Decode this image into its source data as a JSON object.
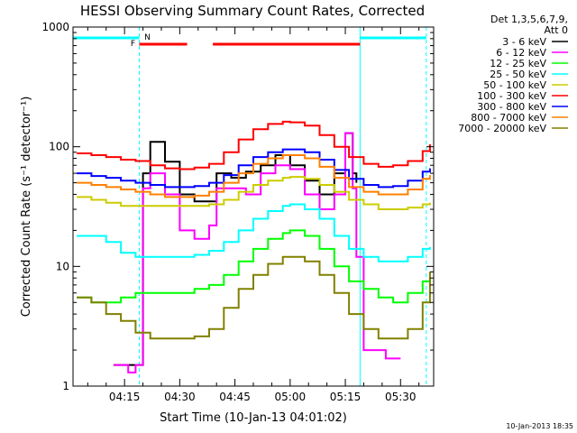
{
  "chart_data": {
    "type": "line",
    "title": "HESSI Observing Summary Count Rates, Corrected",
    "xlabel": "Start Time (10-Jan-13 04:01:02)",
    "ylabel": "Corrected Count Rate (s⁻¹ detector⁻¹)",
    "y_scale": "log",
    "ylim": [
      1,
      1000
    ],
    "y_ticks": [
      "1",
      "10",
      "100",
      "1000"
    ],
    "xlim": [
      "04:01",
      "05:39"
    ],
    "x_ticks": [
      "04:15",
      "04:30",
      "04:45",
      "05:00",
      "05:15",
      "05:30"
    ],
    "legend_title": [
      "Det 1,3,5,6,7,9,",
      "Att 0"
    ],
    "legend_position": "right",
    "timestamp": "10-Jan-2013 18:35",
    "flags": {
      "labels": [
        "F",
        "N"
      ],
      "night": [
        [
          "04:01",
          "04:19"
        ],
        [
          "05:19",
          "05:37"
        ]
      ],
      "saa_flare": [
        [
          "04:19",
          "04:32"
        ],
        [
          "04:39",
          "05:19"
        ]
      ]
    },
    "series": [
      {
        "name": "3 - 6 keV",
        "color": "#000000",
        "x": [
          "04:12",
          "04:16",
          "04:18",
          "04:20",
          "04:22",
          "04:26",
          "04:30",
          "04:34",
          "04:38",
          "04:40",
          "04:44",
          "04:48",
          "04:52",
          "04:56",
          "05:00",
          "05:04",
          "05:08",
          "05:12",
          "05:15",
          "05:17",
          "05:18"
        ],
        "y": [
          1.5,
          1.5,
          1.5,
          60,
          110,
          75,
          40,
          35,
          35,
          60,
          55,
          62,
          70,
          85,
          70,
          52,
          40,
          60,
          130,
          60,
          50
        ]
      },
      {
        "name": "6 - 12 keV",
        "color": "#ff00ff",
        "x": [
          "04:12",
          "04:16",
          "04:18",
          "04:20",
          "04:22",
          "04:26",
          "04:30",
          "04:34",
          "04:38",
          "04:40",
          "04:44",
          "04:48",
          "04:52",
          "04:56",
          "05:00",
          "05:04",
          "05:08",
          "05:12",
          "05:15",
          "05:17",
          "05:18",
          "05:20",
          "05:26",
          "05:30"
        ],
        "y": [
          1.5,
          1.3,
          1.5,
          45,
          60,
          40,
          20,
          17,
          22,
          45,
          45,
          40,
          60,
          70,
          65,
          40,
          30,
          40,
          130,
          45,
          12,
          2,
          1.7,
          1.7
        ]
      },
      {
        "name": "12 - 25 keV",
        "color": "#00ff00",
        "x": [
          "04:02",
          "04:06",
          "04:10",
          "04:14",
          "04:18",
          "04:22",
          "04:26",
          "04:30",
          "04:34",
          "04:38",
          "04:42",
          "04:46",
          "04:50",
          "04:54",
          "04:58",
          "05:00",
          "05:04",
          "05:08",
          "05:12",
          "05:16",
          "05:20",
          "05:24",
          "05:28",
          "05:32",
          "05:36",
          "05:38"
        ],
        "y": [
          5.5,
          5.0,
          5.0,
          5.5,
          6.0,
          6.0,
          6.0,
          6.0,
          6.5,
          7.0,
          8.5,
          11,
          14,
          17,
          19,
          20,
          18,
          14,
          10,
          7.5,
          6.5,
          5.5,
          5.0,
          6.0,
          7.5,
          8.0
        ]
      },
      {
        "name": "25 - 50 keV",
        "color": "#00ffff",
        "x": [
          "04:02",
          "04:06",
          "04:10",
          "04:14",
          "04:18",
          "04:22",
          "04:26",
          "04:30",
          "04:34",
          "04:38",
          "04:42",
          "04:46",
          "04:50",
          "04:54",
          "04:58",
          "05:00",
          "05:04",
          "05:08",
          "05:12",
          "05:16",
          "05:20",
          "05:24",
          "05:28",
          "05:32",
          "05:36",
          "05:38"
        ],
        "y": [
          18,
          18,
          16,
          13,
          12,
          12,
          12,
          12,
          12.5,
          13.5,
          16,
          20,
          25,
          29,
          32,
          33,
          30,
          25,
          18,
          14,
          12,
          11,
          11,
          12,
          14,
          14.5
        ]
      },
      {
        "name": "50 - 100 keV",
        "color": "#cccc00",
        "x": [
          "04:02",
          "04:06",
          "04:10",
          "04:14",
          "04:18",
          "04:22",
          "04:26",
          "04:30",
          "04:34",
          "04:38",
          "04:42",
          "04:46",
          "04:50",
          "04:54",
          "04:58",
          "05:00",
          "05:04",
          "05:08",
          "05:12",
          "05:16",
          "05:20",
          "05:24",
          "05:28",
          "05:32",
          "05:36",
          "05:38"
        ],
        "y": [
          38,
          36,
          34,
          32,
          32,
          32,
          32,
          32,
          32,
          33,
          36,
          42,
          48,
          52,
          55,
          56,
          54,
          48,
          42,
          36,
          33,
          30,
          30,
          31,
          33,
          34
        ]
      },
      {
        "name": "100 - 300 keV",
        "color": "#ff0000",
        "x": [
          "04:02",
          "04:06",
          "04:10",
          "04:14",
          "04:18",
          "04:22",
          "04:26",
          "04:30",
          "04:34",
          "04:38",
          "04:42",
          "04:46",
          "04:50",
          "04:54",
          "04:58",
          "05:00",
          "05:04",
          "05:08",
          "05:12",
          "05:16",
          "05:20",
          "05:24",
          "05:28",
          "05:32",
          "05:36",
          "05:38"
        ],
        "y": [
          88,
          85,
          82,
          78,
          76,
          70,
          66,
          65,
          67,
          72,
          90,
          115,
          140,
          155,
          162,
          160,
          150,
          125,
          100,
          82,
          72,
          68,
          70,
          76,
          92,
          105
        ]
      },
      {
        "name": "300 - 800 keV",
        "color": "#0000ff",
        "x": [
          "04:02",
          "04:06",
          "04:10",
          "04:14",
          "04:18",
          "04:22",
          "04:26",
          "04:30",
          "04:34",
          "04:38",
          "04:42",
          "04:46",
          "04:50",
          "04:54",
          "04:58",
          "05:00",
          "05:04",
          "05:08",
          "05:12",
          "05:16",
          "05:20",
          "05:24",
          "05:28",
          "05:32",
          "05:36",
          "05:38"
        ],
        "y": [
          60,
          57,
          55,
          52,
          50,
          48,
          46,
          46,
          47,
          50,
          58,
          70,
          82,
          90,
          95,
          95,
          90,
          78,
          64,
          54,
          48,
          46,
          47,
          52,
          62,
          66
        ]
      },
      {
        "name": "800 - 7000 keV",
        "color": "#ff8000",
        "x": [
          "04:02",
          "04:06",
          "04:10",
          "04:14",
          "04:18",
          "04:22",
          "04:26",
          "04:30",
          "04:34",
          "04:38",
          "04:42",
          "04:46",
          "04:50",
          "04:54",
          "04:58",
          "05:00",
          "05:04",
          "05:08",
          "05:12",
          "05:16",
          "05:20",
          "05:24",
          "05:28",
          "05:32",
          "05:36",
          "05:38"
        ],
        "y": [
          50,
          48,
          46,
          44,
          42,
          40,
          38,
          38,
          39,
          42,
          50,
          60,
          72,
          80,
          85,
          85,
          80,
          68,
          55,
          46,
          42,
          40,
          40,
          44,
          54,
          58
        ]
      },
      {
        "name": "7000 - 20000 keV",
        "color": "#808000",
        "x": [
          "04:02",
          "04:06",
          "04:10",
          "04:14",
          "04:18",
          "04:22",
          "04:26",
          "04:30",
          "04:34",
          "04:38",
          "04:42",
          "04:46",
          "04:50",
          "04:54",
          "04:58",
          "05:00",
          "05:04",
          "05:08",
          "05:12",
          "05:16",
          "05:20",
          "05:24",
          "05:28",
          "05:32",
          "05:36",
          "05:38"
        ],
        "y": [
          5.5,
          5.0,
          4.0,
          3.5,
          2.8,
          2.5,
          2.5,
          2.5,
          2.6,
          3.0,
          4.5,
          6.5,
          8.5,
          10.5,
          12,
          12,
          11,
          8.5,
          6.0,
          4.0,
          3.0,
          2.5,
          2.5,
          3.0,
          5.0,
          9.0
        ]
      }
    ]
  }
}
